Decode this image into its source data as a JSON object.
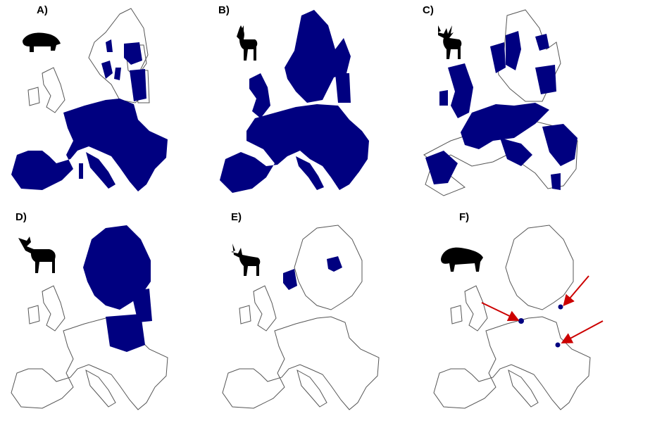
{
  "colors": {
    "range": "#000080",
    "outline": "#555555",
    "arrow": "#cc0000",
    "silhouette": "#000000"
  },
  "panels": [
    {
      "label": "A)",
      "icon": "wild-boar-icon",
      "coverage": "wide"
    },
    {
      "label": "B)",
      "icon": "roe-deer-icon",
      "coverage": "wide"
    },
    {
      "label": "C)",
      "icon": "red-deer-icon",
      "coverage": "patchy"
    },
    {
      "label": "D)",
      "icon": "moose-icon",
      "coverage": "north-east"
    },
    {
      "label": "E)",
      "icon": "reindeer-icon",
      "coverage": "scandinavia-patches"
    },
    {
      "label": "F)",
      "icon": "bison-icon",
      "coverage": "poland-spots"
    }
  ]
}
